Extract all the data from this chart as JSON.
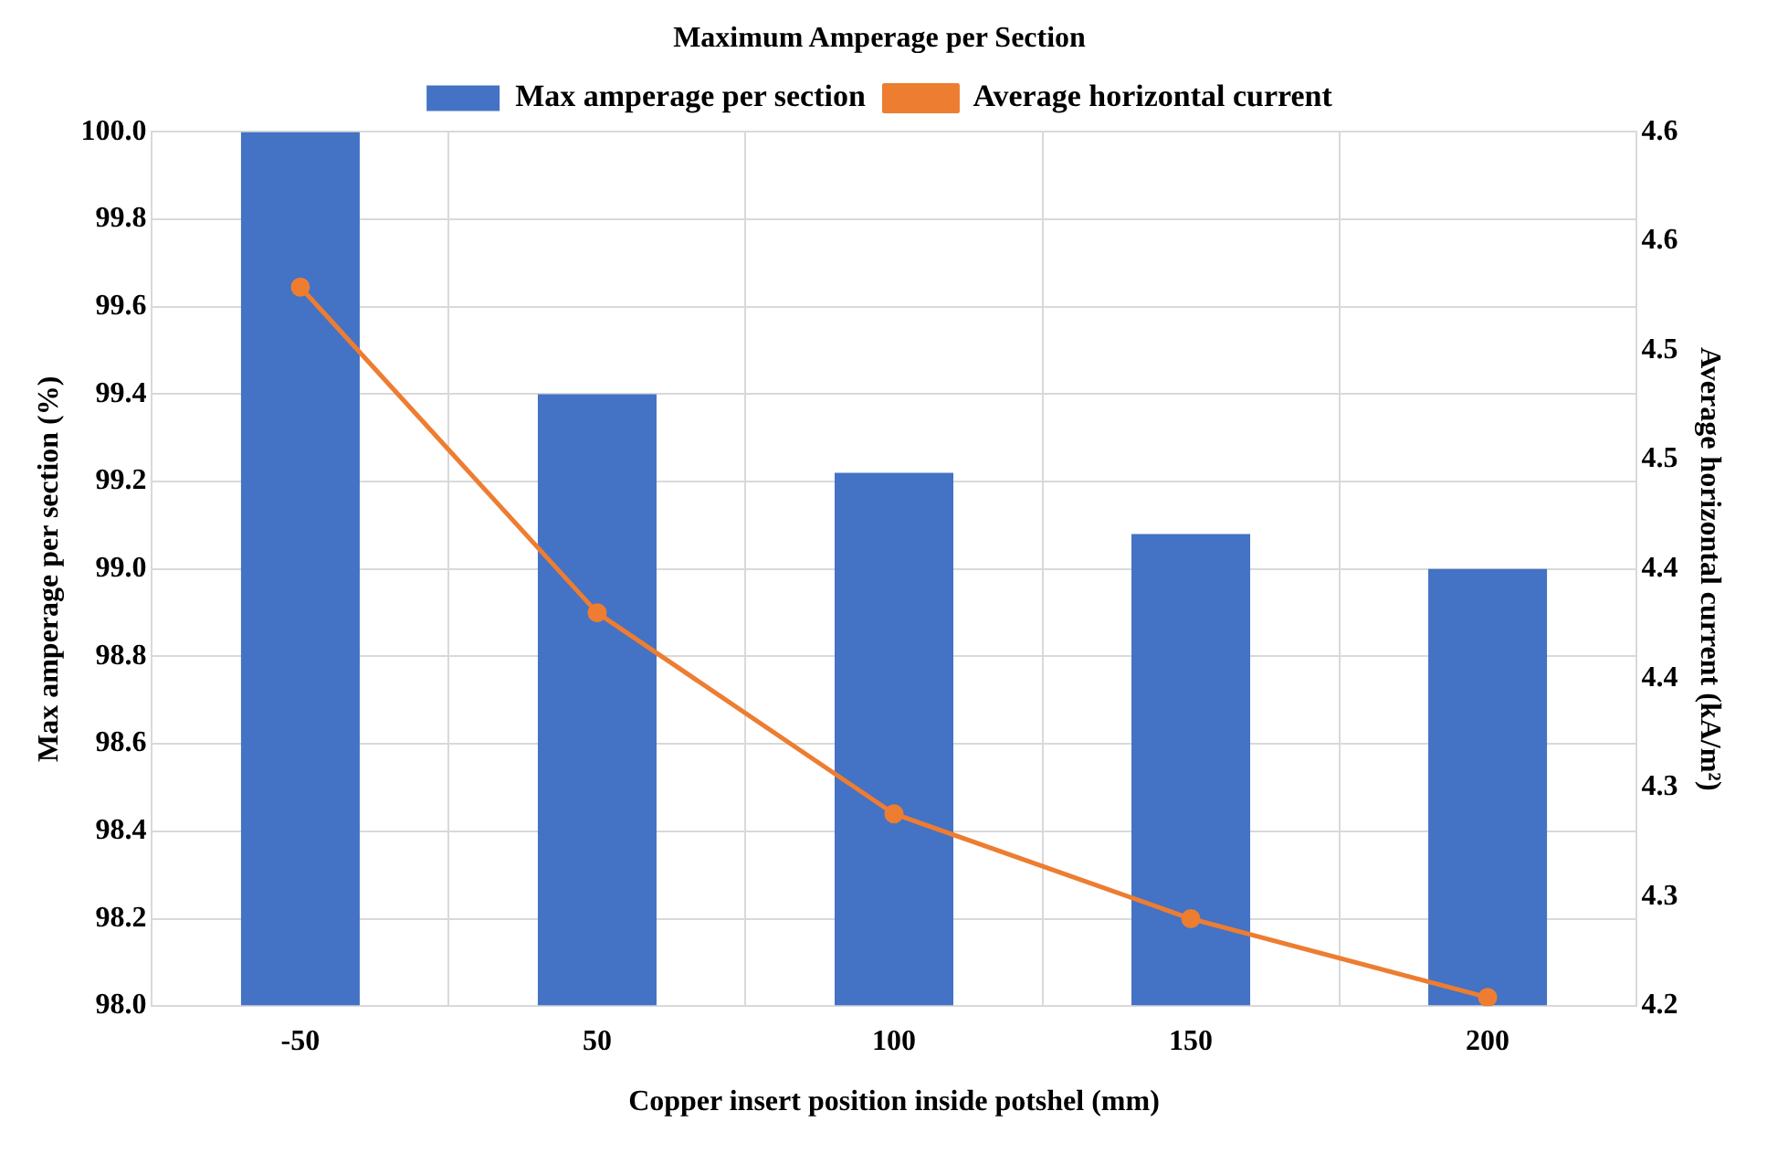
{
  "chart_data": {
    "type": "bar",
    "title": "Maximum Amperage per Section",
    "xlabel": "Copper insert position inside potshel (mm)",
    "ylabel": "Max amperage per section (%)",
    "y2label": "Average horizontal current (kA/m²)",
    "categories": [
      "-50",
      "50",
      "100",
      "150",
      "200"
    ],
    "series": [
      {
        "name": "Max amperage per section",
        "color": "#4472c4",
        "values": [
          100.0,
          99.4,
          99.22,
          99.08,
          99.0
        ]
      },
      {
        "name": "Average horizontal current",
        "type": "line",
        "axis": "y2",
        "color": "#ed7d31",
        "values": [
          4.529,
          4.38,
          4.288,
          4.24,
          4.204
        ]
      }
    ],
    "ylim": [
      98.0,
      100.0
    ],
    "yticks": [
      {
        "value": 98.0,
        "label": "98.0"
      },
      {
        "value": 98.2,
        "label": "98.2"
      },
      {
        "value": 98.4,
        "label": "98.4"
      },
      {
        "value": 98.6,
        "label": "98.6"
      },
      {
        "value": 98.8,
        "label": "98.8"
      },
      {
        "value": 99.0,
        "label": "99.0"
      },
      {
        "value": 99.2,
        "label": "99.2"
      },
      {
        "value": 99.4,
        "label": "99.4"
      },
      {
        "value": 99.6,
        "label": "99.6"
      },
      {
        "value": 99.8,
        "label": "99.8"
      },
      {
        "value": 100.0,
        "label": "100.0"
      }
    ],
    "y2lim": [
      4.2,
      4.6
    ],
    "y2ticks": [
      {
        "value": 4.2,
        "label": "4.2"
      },
      {
        "value": 4.25,
        "label": "4.3"
      },
      {
        "value": 4.3,
        "label": "4.3"
      },
      {
        "value": 4.35,
        "label": "4.4"
      },
      {
        "value": 4.4,
        "label": "4.4"
      },
      {
        "value": 4.45,
        "label": "4.5"
      },
      {
        "value": 4.5,
        "label": "4.5"
      },
      {
        "value": 4.55,
        "label": "4.6"
      },
      {
        "value": 4.6,
        "label": "4.6"
      }
    ],
    "grid": true,
    "legend": "top",
    "marker": "circle",
    "line_style": "solid"
  }
}
